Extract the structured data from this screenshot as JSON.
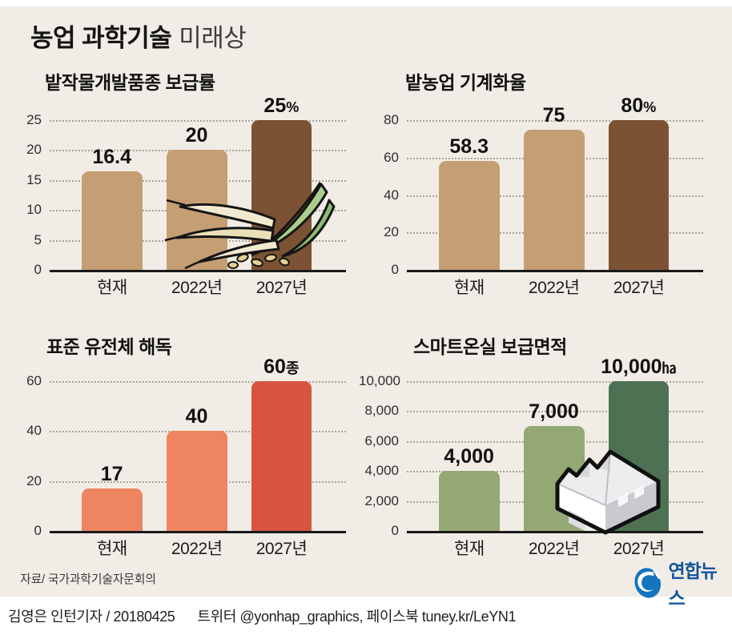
{
  "header": {
    "title_bold": "농업 과학기술",
    "title_light": "미래상"
  },
  "chart_data": [
    {
      "type": "bar",
      "title": "밭작물개발품종 보급률",
      "categories": [
        "현재",
        "2022년",
        "2027년"
      ],
      "values": [
        16.4,
        20,
        25
      ],
      "value_labels": [
        "16.4",
        "20",
        "25"
      ],
      "value_suffixes": [
        "",
        "",
        "%"
      ],
      "unit": "%",
      "yticks": [
        0,
        5,
        10,
        15,
        20,
        25
      ],
      "ytick_labels": [
        "0",
        "5",
        "10",
        "15",
        "20",
        "25"
      ],
      "ylim": [
        0,
        25
      ],
      "grid": "dotted",
      "bar_colors": [
        "#c59e73",
        "#c59e73",
        "#7b5233"
      ]
    },
    {
      "type": "bar",
      "title": "밭농업 기계화율",
      "categories": [
        "현재",
        "2022년",
        "2027년"
      ],
      "values": [
        58.3,
        75,
        80
      ],
      "value_labels": [
        "58.3",
        "75",
        "80"
      ],
      "value_suffixes": [
        "",
        "",
        "%"
      ],
      "unit": "%",
      "yticks": [
        0,
        20,
        40,
        60,
        80
      ],
      "ytick_labels": [
        "0",
        "20",
        "40",
        "60",
        "80"
      ],
      "ylim": [
        0,
        80
      ],
      "grid": "dotted",
      "bar_colors": [
        "#c59e73",
        "#c59e73",
        "#7b5233"
      ]
    },
    {
      "type": "bar",
      "title": "표준 유전체 해독",
      "categories": [
        "현재",
        "2022년",
        "2027년"
      ],
      "values": [
        17,
        40,
        60
      ],
      "value_labels": [
        "17",
        "40",
        "60"
      ],
      "value_suffixes": [
        "",
        "",
        "종"
      ],
      "unit": "종",
      "yticks": [
        0,
        20,
        40,
        60
      ],
      "ytick_labels": [
        "0",
        "20",
        "40",
        "60"
      ],
      "ylim": [
        0,
        60
      ],
      "grid": "dotted",
      "bar_colors": [
        "#ee8560",
        "#ee8560",
        "#d85441"
      ]
    },
    {
      "type": "bar",
      "title": "스마트온실 보급면적",
      "categories": [
        "현재",
        "2022년",
        "2027년"
      ],
      "values": [
        4000,
        7000,
        10000
      ],
      "value_labels": [
        "4,000",
        "7,000",
        "10,000"
      ],
      "value_suffixes": [
        "",
        "",
        "㏊"
      ],
      "unit": "㏊",
      "yticks": [
        0,
        2000,
        4000,
        6000,
        8000,
        10000
      ],
      "ytick_labels": [
        "0",
        "2,000",
        "4,000",
        "6,000",
        "8,000",
        "10,000"
      ],
      "ylim": [
        0,
        10000
      ],
      "grid": "dotted",
      "bar_colors": [
        "#94a873",
        "#94a873",
        "#4e7154"
      ]
    }
  ],
  "footer": {
    "source": "자료/ 국가과학기술자문회의",
    "byline": "김영은 인턴기자 / 20180425",
    "social": "트위터 @yonhap_graphics, 페이스북 tuney.kr/LeYN1",
    "logo_text": "연합뉴스"
  },
  "colors": {
    "background": "#f1ede6",
    "baseline": "#1a1a1a",
    "gridline": "#a8a299",
    "logo_blue": "#1474be",
    "logo_text_blue": "#14549c"
  },
  "illustrations": {
    "wheat": "wheat-sprig-illustration",
    "greenhouse": "smart-greenhouse-illustration",
    "logo_icon": "yonhap-swirl-icon"
  }
}
